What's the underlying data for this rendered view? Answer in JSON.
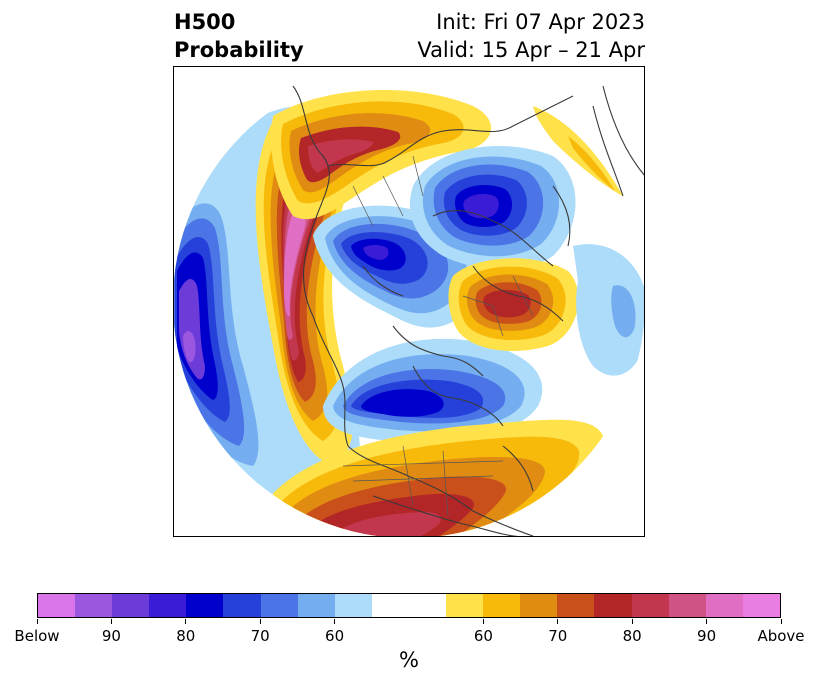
{
  "title": {
    "variable": "H500",
    "product": "Probability",
    "init": "Init: Fri 07 Apr 2023",
    "valid": "Valid: 15 Apr – 21 Apr"
  },
  "map": {
    "projection": "north-polar-stereographic",
    "basemap": "coastlines and country borders",
    "anomaly_regions": [
      {
        "label": "Above",
        "level": 90,
        "area": "Bering Sea / Alaska"
      },
      {
        "label": "Above",
        "level": 85,
        "area": "Eastern Siberia"
      },
      {
        "label": "Above",
        "level": 80,
        "area": "Southern United States / Gulf of Mexico"
      },
      {
        "label": "Above",
        "level": 80,
        "area": "Northern Europe / Scandinavia"
      },
      {
        "label": "Below",
        "level": 90,
        "area": "North Pacific"
      },
      {
        "label": "Below",
        "level": 80,
        "area": "Canada / Hudson Bay"
      },
      {
        "label": "Below",
        "level": 80,
        "area": "Western Siberia"
      },
      {
        "label": "Below",
        "level": 75,
        "area": "Arctic Ocean north of Siberia"
      }
    ]
  },
  "colorbar": {
    "unit": "%",
    "colors": [
      "#d975e9",
      "#9b57e0",
      "#6d3bd8",
      "#3a1cd6",
      "#0000cd",
      "#2541d9",
      "#4b74e6",
      "#74aef0",
      "#acdcf9",
      "#ffffff",
      "#ffe14a",
      "#f7b90a",
      "#e08c12",
      "#c9501a",
      "#b22628",
      "#c2374d",
      "#cf5384",
      "#e06ec2",
      "#ea7de2"
    ],
    "labels": [
      "Below",
      "90",
      "80",
      "70",
      "60",
      "60",
      "70",
      "80",
      "90",
      "Above"
    ]
  }
}
